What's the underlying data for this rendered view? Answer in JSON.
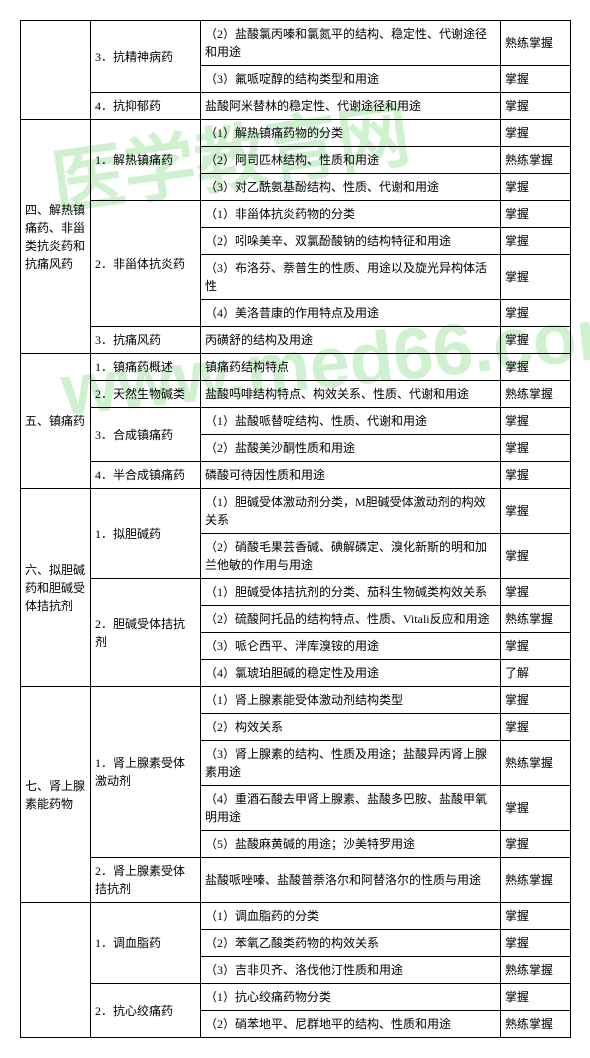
{
  "watermark1": "医学教育网",
  "watermark2": "www.med66.com",
  "table": {
    "col1": {
      "blank": "",
      "r4": "四、解热镇痛药、非甾类抗炎药和抗痛风药",
      "r5": "五、镇痛药",
      "r6": "六、拟胆碱药和胆碱受体拮抗剂",
      "r7": "七、肾上腺素能药物",
      "r8": ""
    },
    "col2": {
      "s3_3": "3．抗精神病药",
      "s3_4": "4．抗抑郁药",
      "s4_1": "1．解热镇痛药",
      "s4_2": "2．非甾体抗炎药",
      "s4_3": "3．抗痛风药",
      "s5_1": "1．镇痛药概述",
      "s5_2": "2．天然生物碱类",
      "s5_3": "3．合成镇痛药",
      "s5_4": "4．半合成镇痛药",
      "s6_1": "1．拟胆碱药",
      "s6_2": "2．胆碱受体拮抗剂",
      "s7_1": "1．肾上腺素受体激动剂",
      "s7_2": "2．肾上腺素受体拮抗剂",
      "s8_1": "1．调血脂药",
      "s8_2": "2．抗心绞痛药"
    },
    "col3": {
      "r1": "（2）盐酸氯丙嗪和氯氮平的结构、稳定性、代谢途径和用途",
      "r2": "（3）氟哌啶醇的结构类型和用途",
      "r3": "盐酸阿米替林的稳定性、代谢途径和用途",
      "r4": "（1）解热镇痛药物的分类",
      "r5": "（2）阿司匹林结构、性质和用途",
      "r6": "（3）对乙酰氨基酚结构、性质、代谢和用途",
      "r7": "（1）非甾体抗炎药物的分类",
      "r8": "（2）吲哚美辛、双氯酚酸钠的结构特征和用途",
      "r9": "（3）布洛芬、萘普生的性质、用途以及旋光异构体活性",
      "r10": "（4）美洛昔康的作用特点及用途",
      "r11": "丙磺舒的结构及用途",
      "r12": "镇痛药结构特点",
      "r13": "盐酸吗啡结构特点、构效关系、性质、代谢和用途",
      "r14": "（1）盐酸哌替啶结构、性质、代谢和用途",
      "r15": "（2）盐酸美沙酮性质和用途",
      "r16": "磷酸可待因性质和用途",
      "r17": "（1）胆碱受体激动剂分类，M胆碱受体激动剂的构效关系",
      "r18": "（2）硝酸毛果芸香碱、碘解磷定、溴化新斯的明和加兰他敏的作用与用途",
      "r19": "（1）胆碱受体拮抗剂的分类、茄科生物碱类构效关系",
      "r20": "（2）硫酸阿托品的结构特点、性质、Vitali反应和用途",
      "r21": "（3）哌仑西平、泮库溴铵的用途",
      "r22": "（4）氯琥珀胆碱的稳定性及用途",
      "r23": "（1）肾上腺素能受体激动剂结构类型",
      "r24": "（2）构效关系",
      "r25": "（3）肾上腺素的结构、性质及用途；盐酸异丙肾上腺素用途",
      "r26": "（4）重酒石酸去甲肾上腺素、盐酸多巴胺、盐酸甲氧明用途",
      "r27": "（5）盐酸麻黄碱的用途；沙美特罗用途",
      "r28": "盐酸哌唑嗪、盐酸普萘洛尔和阿替洛尔的性质与用途",
      "r29": "（1）调血脂药的分类",
      "r30": "（2）苯氧乙酸类药物的构效关系",
      "r31": "（3）吉非贝齐、洛伐他汀性质和用途",
      "r32": "（1）抗心绞痛药物分类",
      "r33": "（2）硝苯地平、尼群地平的结构、性质和用途"
    },
    "col4": {
      "master": "熟练掌握",
      "grasp": "掌握",
      "know": "了解"
    }
  }
}
